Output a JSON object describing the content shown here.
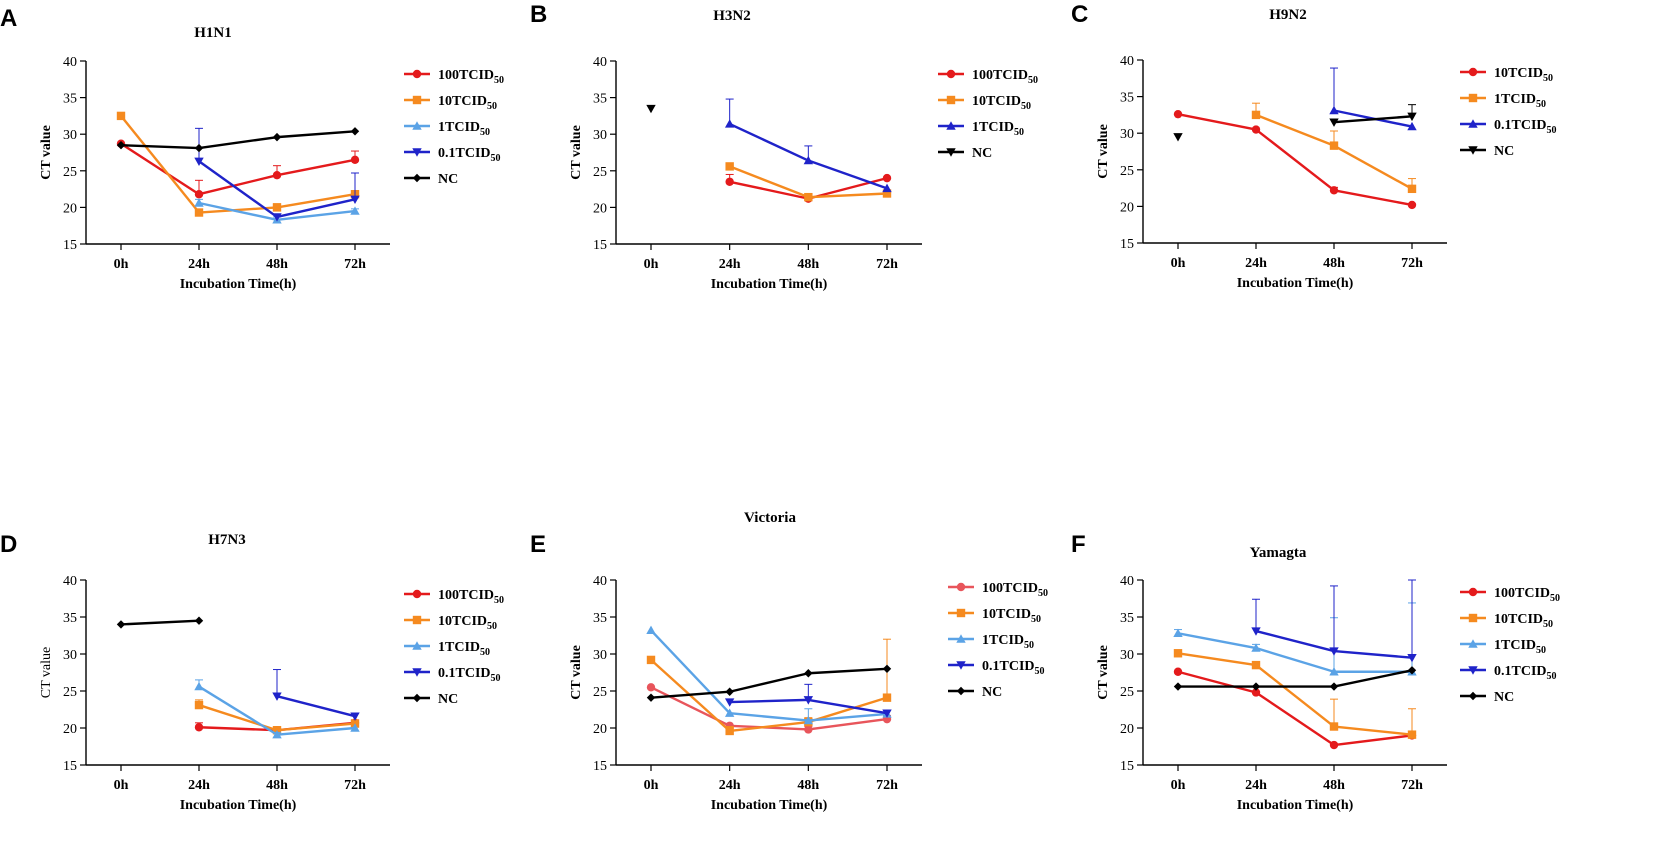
{
  "figure": {
    "subscript": "50",
    "xticks": [
      "0h",
      "24h",
      "48h",
      "72h"
    ],
    "yticks": [
      15,
      20,
      25,
      30,
      35,
      40
    ],
    "xlabel": "Incubation Time(h)",
    "ylabel": "CT value"
  },
  "colors": {
    "red": "#e41a1c",
    "salmon": "#e8555b",
    "orange": "#f58a1f",
    "lightblue": "#5ba3e6",
    "blue": "#1f23c9",
    "black": "#000000"
  },
  "chart_data": [
    {
      "panel": "A",
      "title": "H1N1",
      "type": "line",
      "ylabel_bold": true,
      "categories": [
        "0h",
        "24h",
        "48h",
        "72h"
      ],
      "ylim": [
        15,
        40
      ],
      "xlabel": "Incubation Time(h)",
      "ylabel": "CT value",
      "series": [
        {
          "name": "100TCID",
          "suffix": "50",
          "color": "red",
          "marker": "circle",
          "values": [
            28.7,
            21.8,
            24.4,
            26.5
          ],
          "err": [
            0,
            1.9,
            1.3,
            1.2
          ]
        },
        {
          "name": "10TCID",
          "suffix": "50",
          "color": "orange",
          "marker": "square",
          "values": [
            32.5,
            19.3,
            20.0,
            21.8
          ],
          "err": [
            0,
            0,
            0.5,
            0.5
          ]
        },
        {
          "name": "1TCID",
          "suffix": "50",
          "color": "lightblue",
          "marker": "triangle",
          "values": [
            null,
            20.6,
            18.3,
            19.5
          ],
          "err": [
            0,
            0.5,
            0.4,
            0.3
          ]
        },
        {
          "name": "0.1TCID",
          "suffix": "50",
          "color": "blue",
          "marker": "tridown",
          "values": [
            null,
            26.3,
            18.7,
            21.1
          ],
          "err": [
            0,
            4.5,
            0,
            3.6
          ]
        },
        {
          "name": "NC",
          "suffix": "",
          "color": "black",
          "marker": "diamond",
          "values": [
            28.5,
            28.1,
            29.6,
            30.4
          ],
          "err": [
            0,
            0,
            0,
            0
          ]
        }
      ]
    },
    {
      "panel": "B",
      "title": "H3N2",
      "type": "line",
      "ylabel_bold": true,
      "categories": [
        "0h",
        "24h",
        "48h",
        "72h"
      ],
      "ylim": [
        15,
        40
      ],
      "xlabel": "Incubation Time(h)",
      "ylabel": "CT value",
      "series": [
        {
          "name": "100TCID",
          "suffix": "50",
          "color": "red",
          "marker": "circle",
          "values": [
            null,
            23.5,
            21.2,
            24.0
          ],
          "err": [
            0,
            1.0,
            0.3,
            0
          ]
        },
        {
          "name": "10TCID",
          "suffix": "50",
          "color": "orange",
          "marker": "square",
          "values": [
            null,
            25.6,
            21.4,
            21.9
          ],
          "err": [
            0,
            0,
            0.3,
            0.3
          ]
        },
        {
          "name": "1TCID",
          "suffix": "50",
          "color": "blue",
          "marker": "triangle",
          "values": [
            null,
            31.4,
            26.4,
            22.6
          ],
          "err": [
            0,
            3.4,
            2.0,
            0
          ]
        },
        {
          "name": "NC",
          "suffix": "",
          "color": "black",
          "marker": "tridown",
          "values": [
            33.5,
            null,
            null,
            null
          ],
          "err": [
            0,
            0,
            0,
            0
          ]
        }
      ]
    },
    {
      "panel": "C",
      "title": "H9N2",
      "type": "line",
      "ylabel_bold": true,
      "categories": [
        "0h",
        "24h",
        "48h",
        "72h"
      ],
      "ylim": [
        15,
        40
      ],
      "xlabel": "Incubation Time(h)",
      "ylabel": "CT value",
      "series": [
        {
          "name": "10TCID",
          "suffix": "50",
          "color": "red",
          "marker": "circle",
          "values": [
            32.6,
            30.5,
            22.2,
            20.2
          ],
          "err": [
            0,
            0,
            0.4,
            0
          ]
        },
        {
          "name": "1TCID",
          "suffix": "50",
          "color": "orange",
          "marker": "square",
          "values": [
            null,
            32.5,
            28.3,
            22.4
          ],
          "err": [
            0,
            1.6,
            2.0,
            1.4
          ]
        },
        {
          "name": "0.1TCID",
          "suffix": "50",
          "color": "blue",
          "marker": "triangle",
          "values": [
            null,
            null,
            33.1,
            30.9
          ],
          "err": [
            0,
            0,
            5.8,
            0
          ]
        },
        {
          "name": "NC",
          "suffix": "",
          "color": "black",
          "marker": "tridown",
          "values": [
            29.5,
            null,
            31.5,
            32.3
          ],
          "err": [
            0,
            0,
            0,
            1.6
          ]
        }
      ]
    },
    {
      "panel": "D",
      "title": "H7N3",
      "type": "line",
      "ylabel_bold": false,
      "categories": [
        "0h",
        "24h",
        "48h",
        "72h"
      ],
      "ylim": [
        15,
        40
      ],
      "xlabel": "Incubation Time(h)",
      "ylabel": "CT value",
      "series": [
        {
          "name": "100TCID",
          "suffix": "50",
          "color": "red",
          "marker": "circle",
          "values": [
            null,
            20.1,
            19.7,
            20.7
          ],
          "err": [
            0,
            0.6,
            0.2,
            0.4
          ]
        },
        {
          "name": "10TCID",
          "suffix": "50",
          "color": "orange",
          "marker": "square",
          "values": [
            null,
            23.1,
            19.7,
            20.6
          ],
          "err": [
            0,
            0.7,
            0.2,
            0.3
          ]
        },
        {
          "name": "1TCID",
          "suffix": "50",
          "color": "lightblue",
          "marker": "triangle",
          "values": [
            null,
            25.6,
            19.1,
            20.0
          ],
          "err": [
            0,
            0.9,
            0.3,
            0
          ]
        },
        {
          "name": "0.1TCID",
          "suffix": "50",
          "color": "blue",
          "marker": "tridown",
          "values": [
            null,
            null,
            24.3,
            21.6
          ],
          "err": [
            0,
            0,
            3.6,
            0.4
          ]
        },
        {
          "name": "NC",
          "suffix": "",
          "color": "black",
          "marker": "diamond",
          "values": [
            34.0,
            34.5,
            null,
            null
          ],
          "err": [
            0,
            0,
            0,
            0
          ]
        }
      ]
    },
    {
      "panel": "E",
      "title": "Victoria",
      "type": "line",
      "ylabel_bold": true,
      "categories": [
        "0h",
        "24h",
        "48h",
        "72h"
      ],
      "ylim": [
        15,
        40
      ],
      "xlabel": "Incubation Time(h)",
      "ylabel": "CT value",
      "series": [
        {
          "name": "100TCID",
          "suffix": "50",
          "color": "salmon",
          "marker": "circle",
          "values": [
            25.5,
            20.3,
            19.8,
            21.2
          ],
          "err": [
            0,
            0,
            0.4,
            0.5
          ]
        },
        {
          "name": "10TCID",
          "suffix": "50",
          "color": "orange",
          "marker": "square",
          "values": [
            29.2,
            19.6,
            20.8,
            24.1
          ],
          "err": [
            0,
            0.6,
            0.6,
            7.9
          ]
        },
        {
          "name": "1TCID",
          "suffix": "50",
          "color": "lightblue",
          "marker": "triangle",
          "values": [
            33.2,
            22.0,
            21.0,
            21.9
          ],
          "err": [
            0,
            0,
            1.6,
            0
          ]
        },
        {
          "name": "0.1TCID",
          "suffix": "50",
          "color": "blue",
          "marker": "tridown",
          "values": [
            null,
            23.5,
            23.8,
            22.0
          ],
          "err": [
            0,
            0,
            2.1,
            0
          ]
        },
        {
          "name": "NC",
          "suffix": "",
          "color": "black",
          "marker": "diamond",
          "values": [
            24.1,
            24.9,
            27.4,
            28.0
          ],
          "err": [
            0,
            0,
            0,
            0
          ]
        }
      ]
    },
    {
      "panel": "F",
      "title": "Yamagta",
      "type": "line",
      "ylabel_bold": true,
      "categories": [
        "0h",
        "24h",
        "48h",
        "72h"
      ],
      "ylim": [
        15,
        40
      ],
      "xlabel": "Incubation Time(h)",
      "ylabel": "CT value",
      "series": [
        {
          "name": "100TCID",
          "suffix": "50",
          "color": "red",
          "marker": "circle",
          "values": [
            27.6,
            24.8,
            17.7,
            19.0
          ],
          "err": [
            0,
            0,
            0,
            0
          ]
        },
        {
          "name": "10TCID",
          "suffix": "50",
          "color": "orange",
          "marker": "square",
          "values": [
            30.1,
            28.5,
            20.2,
            19.1
          ],
          "err": [
            0,
            0,
            3.7,
            3.5
          ]
        },
        {
          "name": "1TCID",
          "suffix": "50",
          "color": "lightblue",
          "marker": "triangle",
          "values": [
            32.8,
            30.8,
            27.6,
            27.6
          ],
          "err": [
            0.5,
            0.5,
            7.3,
            9.3
          ]
        },
        {
          "name": "0.1TCID",
          "suffix": "50",
          "color": "blue",
          "marker": "tridown",
          "values": [
            null,
            33.1,
            30.4,
            29.5
          ],
          "err": [
            0,
            4.3,
            8.8,
            10.5
          ]
        },
        {
          "name": "NC",
          "suffix": "",
          "color": "black",
          "marker": "diamond",
          "values": [
            25.6,
            25.6,
            25.6,
            27.8
          ],
          "err": [
            0,
            0,
            0,
            0
          ]
        }
      ]
    }
  ]
}
